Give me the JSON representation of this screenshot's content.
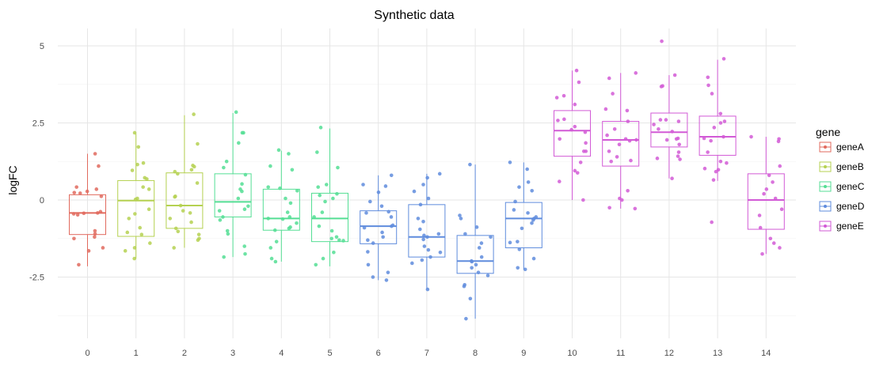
{
  "chart_data": {
    "type": "box",
    "title": "Synthetic data",
    "xlabel": "",
    "ylabel": "logFC",
    "ylim": [
      -4.4,
      5.6
    ],
    "grid": true,
    "legend_position": "right",
    "legend_title": "gene",
    "x_ticks": [
      "0",
      "1",
      "2",
      "3",
      "4",
      "5",
      "6",
      "7",
      "8",
      "9",
      "10",
      "11",
      "12",
      "13",
      "14"
    ],
    "y_ticks": [
      {
        "value": -2.5,
        "label": "-2.5"
      },
      {
        "value": 0,
        "label": "0"
      },
      {
        "value": 2.5,
        "label": "2.5"
      },
      {
        "value": 5,
        "label": "5"
      }
    ],
    "series": [
      {
        "name": "geneA",
        "color": "#E16A5E"
      },
      {
        "name": "geneB",
        "color": "#B5D151"
      },
      {
        "name": "geneC",
        "color": "#54DE94"
      },
      {
        "name": "geneD",
        "color": "#5F8CDD"
      },
      {
        "name": "geneE",
        "color": "#D25AD6"
      }
    ],
    "boxes": [
      {
        "x": 0,
        "series": "geneA",
        "min": -2.15,
        "q1": -1.12,
        "median": -0.42,
        "q3": 0.17,
        "max": 1.5,
        "points": [
          1.5,
          1.1,
          0.42,
          0.35,
          0.28,
          0.24,
          0.22,
          0.12,
          -0.38,
          -0.42,
          -0.43,
          -0.45,
          -0.48,
          -1.0,
          -1.1,
          -1.2,
          -1.25,
          -1.55,
          -1.65,
          -2.1
        ]
      },
      {
        "x": 1,
        "series": "geneB",
        "min": -1.9,
        "q1": -1.18,
        "median": -0.02,
        "q3": 0.63,
        "max": 2.15,
        "points": [
          2.18,
          1.72,
          1.2,
          1.15,
          0.96,
          0.72,
          0.68,
          0.42,
          0.35,
          0.05,
          0.02,
          -0.3,
          -0.45,
          -0.6,
          -0.9,
          -1.05,
          -1.12,
          -1.4,
          -1.55,
          -1.65,
          -1.9
        ]
      },
      {
        "x": 2,
        "series": "geneB",
        "min": -1.55,
        "q1": -0.92,
        "median": -0.18,
        "q3": 0.88,
        "max": 2.75,
        "points": [
          2.78,
          1.82,
          1.12,
          1.08,
          0.98,
          0.92,
          0.85,
          0.55,
          0.12,
          0.1,
          -0.18,
          -0.35,
          -0.42,
          -0.6,
          -0.72,
          -0.92,
          -1.02,
          -1.12,
          -1.25,
          -1.3,
          -1.55
        ]
      },
      {
        "x": 3,
        "series": "geneC",
        "min": -1.85,
        "q1": -0.55,
        "median": -0.06,
        "q3": 0.85,
        "max": 2.82,
        "points": [
          2.85,
          2.18,
          2.18,
          1.85,
          1.25,
          1.05,
          0.82,
          0.52,
          0.35,
          0.28,
          0.05,
          -0.2,
          -0.3,
          -0.35,
          -0.55,
          -0.65,
          -1.0,
          -1.1,
          -1.5,
          -1.75,
          -1.85
        ]
      },
      {
        "x": 4,
        "series": "geneC",
        "min": -2.0,
        "q1": -0.98,
        "median": -0.6,
        "q3": 0.35,
        "max": 1.6,
        "points": [
          1.62,
          1.5,
          1.1,
          0.98,
          0.42,
          0.38,
          0.3,
          0.05,
          -0.1,
          -0.4,
          -0.55,
          -0.6,
          -0.62,
          -0.75,
          -0.88,
          -0.92,
          -0.98,
          -1.35,
          -1.55,
          -1.9,
          -2.0
        ]
      },
      {
        "x": 5,
        "series": "geneC",
        "min": -2.15,
        "q1": -1.35,
        "median": -0.6,
        "q3": 0.22,
        "max": 2.32,
        "points": [
          2.35,
          1.55,
          1.05,
          0.5,
          0.42,
          0.2,
          0.15,
          0.05,
          -0.05,
          -0.4,
          -0.55,
          -0.85,
          -1.0,
          -1.2,
          -1.25,
          -1.3,
          -1.32,
          -1.7,
          -1.9,
          -2.1
        ]
      },
      {
        "x": 6,
        "series": "geneD",
        "min": -2.6,
        "q1": -1.42,
        "median": -0.85,
        "q3": -0.35,
        "max": 0.8,
        "points": [
          0.8,
          0.5,
          0.45,
          0.25,
          -0.05,
          -0.2,
          -0.38,
          -0.42,
          -0.55,
          -0.82,
          -0.85,
          -0.9,
          -1.05,
          -1.2,
          -1.3,
          -1.4,
          -1.68,
          -2.1,
          -2.35,
          -2.5,
          -2.6
        ]
      },
      {
        "x": 7,
        "series": "geneD",
        "min": -2.9,
        "q1": -1.85,
        "median": -1.2,
        "q3": -0.15,
        "max": 0.85,
        "points": [
          0.85,
          0.72,
          0.5,
          0.28,
          0.05,
          -0.15,
          -0.6,
          -0.7,
          -0.95,
          -1.1,
          -1.15,
          -1.2,
          -1.28,
          -1.5,
          -1.62,
          -1.7,
          -1.85,
          -1.95,
          -2.05,
          -2.9
        ]
      },
      {
        "x": 8,
        "series": "geneD",
        "min": -3.85,
        "q1": -2.38,
        "median": -1.98,
        "q3": -1.15,
        "max": 1.15,
        "points": [
          1.15,
          -0.5,
          -0.6,
          -0.88,
          -1.1,
          -1.2,
          -1.4,
          -1.55,
          -1.85,
          -1.98,
          -2.0,
          -2.1,
          -2.2,
          -2.35,
          -2.45,
          -2.75,
          -2.8,
          -3.2,
          -3.85
        ]
      },
      {
        "x": 9,
        "series": "geneD",
        "min": -2.25,
        "q1": -1.55,
        "median": -0.6,
        "q3": -0.08,
        "max": 1.22,
        "points": [
          1.22,
          1.0,
          0.58,
          0.42,
          0.3,
          -0.05,
          -0.32,
          -0.42,
          -0.55,
          -0.6,
          -0.65,
          -0.75,
          -0.92,
          -1.35,
          -1.38,
          -1.6,
          -1.9,
          -2.2,
          -2.25
        ]
      },
      {
        "x": 10,
        "series": "geneE",
        "min": 0.0,
        "q1": 1.42,
        "median": 2.25,
        "q3": 2.9,
        "max": 4.2,
        "points": [
          4.2,
          3.82,
          3.38,
          3.32,
          3.1,
          2.62,
          2.58,
          2.38,
          2.28,
          2.2,
          1.98,
          1.85,
          1.58,
          1.58,
          1.22,
          0.95,
          0.88,
          0.6,
          0.0
        ]
      },
      {
        "x": 11,
        "series": "geneE",
        "min": -0.28,
        "q1": 1.1,
        "median": 1.95,
        "q3": 2.55,
        "max": 4.12,
        "points": [
          4.12,
          3.95,
          3.45,
          2.95,
          2.9,
          2.55,
          2.3,
          2.1,
          1.98,
          1.95,
          1.92,
          1.8,
          1.58,
          1.4,
          1.28,
          1.25,
          0.3,
          0.05,
          0.0,
          -0.25,
          -0.28
        ]
      },
      {
        "x": 12,
        "series": "geneE",
        "min": 0.7,
        "q1": 1.72,
        "median": 2.2,
        "q3": 2.82,
        "max": 4.05,
        "points": [
          5.15,
          4.05,
          3.7,
          3.68,
          2.6,
          2.6,
          2.55,
          2.45,
          2.3,
          2.22,
          2.0,
          1.98,
          1.95,
          1.8,
          1.55,
          1.42,
          1.35,
          1.32,
          0.7
        ]
      },
      {
        "x": 13,
        "series": "geneE",
        "min": 0.62,
        "q1": 1.45,
        "median": 2.05,
        "q3": 2.72,
        "max": 4.55,
        "points": [
          4.58,
          3.98,
          3.72,
          3.45,
          2.8,
          2.55,
          2.5,
          2.35,
          2.05,
          2.0,
          1.92,
          1.55,
          1.25,
          1.2,
          1.02,
          0.98,
          0.92,
          0.65,
          -0.72
        ]
      },
      {
        "x": 14,
        "series": "geneE",
        "min": -1.75,
        "q1": -0.95,
        "median": 0.0,
        "q3": 0.85,
        "max": 2.05,
        "points": [
          2.05,
          1.98,
          1.9,
          1.1,
          0.8,
          0.58,
          0.35,
          0.2,
          0.05,
          -0.3,
          -0.5,
          -0.9,
          -1.25,
          -1.4,
          -1.55,
          -1.75
        ]
      }
    ]
  }
}
